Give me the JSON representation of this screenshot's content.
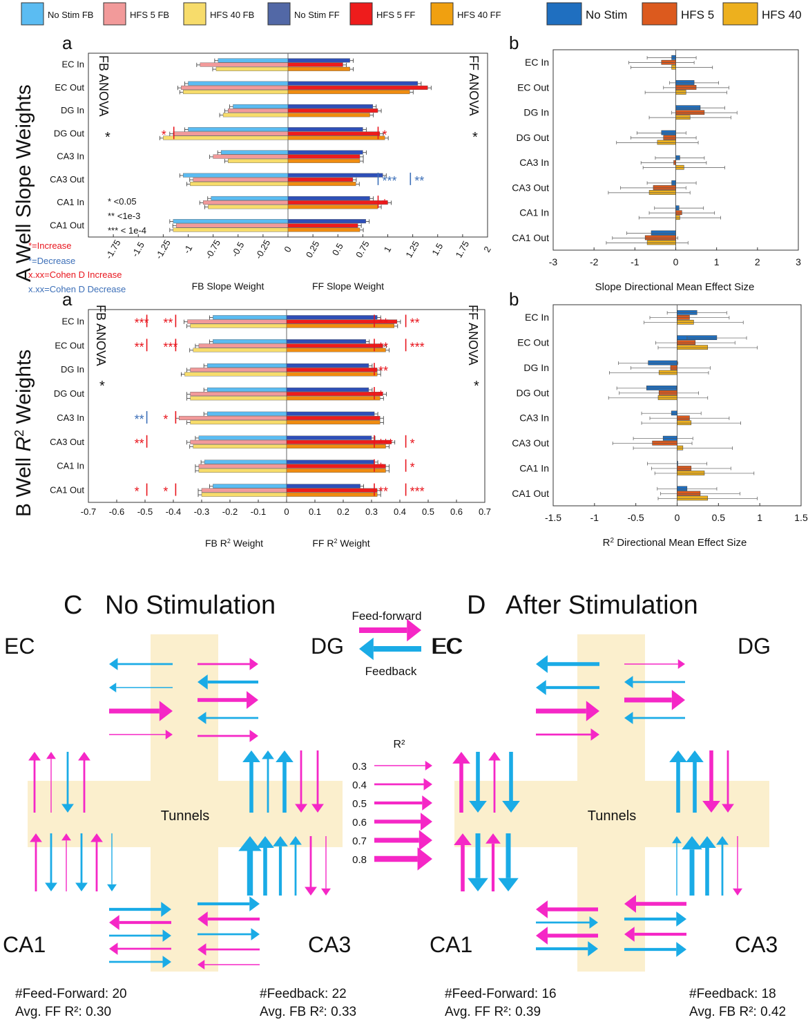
{
  "legend_top": {
    "items": [
      {
        "label": "No Stim FB",
        "color": "#5bbcf2"
      },
      {
        "label": "HFS 5 FB",
        "color": "#f29a9a"
      },
      {
        "label": "HFS 40 FB",
        "color": "#f7dc6b"
      },
      {
        "label": "No Stim FF",
        "color": "#5268a6"
      },
      {
        "label": "HFS 5 FF",
        "color": "#ee1c1c"
      },
      {
        "label": "HFS 40 FF",
        "color": "#f0a010"
      }
    ],
    "items_b": [
      {
        "label": "No Stim",
        "color": "#1f6fc0"
      },
      {
        "label": "HFS 5",
        "color": "#dc5a1e"
      },
      {
        "label": "HFS 40",
        "color": "#edb01e"
      }
    ]
  },
  "colors": {
    "fb": [
      "#5bbcf2",
      "#f29a9a",
      "#f7dc6b"
    ],
    "ff": [
      "#2e4fb8",
      "#ee1c1c",
      "#f08c10"
    ],
    "b": [
      "#1f6fc0",
      "#dc5a1e",
      "#edb01e"
    ],
    "feedforward": "#f527c6",
    "feedback": "#1aabe6",
    "tunnel": "#fbefcd",
    "sig_red": "#e8141c",
    "sig_blue": "#3c6fb8"
  },
  "panel_labels": {
    "A": "A",
    "B": "B",
    "a": "a",
    "b": "b",
    "C": "C",
    "D": "D",
    "A_title": "Well Slope Weights",
    "B_title_prefix": "Well ",
    "B_title_var": "R",
    "B_title_sup": "2",
    "B_title_suffix": " Weights"
  },
  "annotations": {
    "fb_anova": "FB ANOVA",
    "ff_anova": "FF ANOVA",
    "anova_star": "*",
    "sig_legend": [
      "* <0.05",
      "** <1e-3",
      "*** < 1e-4"
    ],
    "increase": "*=Increase",
    "decrease": "*=Decrease",
    "cohen_inc": "x.xx=Cohen  D Increase",
    "cohen_dec": "x.xx=Cohen  D Decrease"
  },
  "chart_data": [
    {
      "id": "A-a",
      "type": "bar",
      "orientation": "horizontal",
      "title": "Well Slope Weights",
      "categories": [
        "EC In",
        "EC Out",
        "DG In",
        "DG Out",
        "CA3 In",
        "CA3 Out",
        "CA1 In",
        "CA1 Out"
      ],
      "series": [
        {
          "name": "No Stim FB",
          "values": [
            -0.7,
            -1.0,
            -0.55,
            -1.0,
            -0.67,
            -1.05,
            -0.77,
            -1.15
          ]
        },
        {
          "name": "HFS 5 FB",
          "values": [
            -0.88,
            -1.07,
            -0.6,
            -1.15,
            -0.75,
            -0.95,
            -0.85,
            -1.12
          ]
        },
        {
          "name": "HFS 40 FB",
          "values": [
            -0.72,
            -1.05,
            -0.65,
            -1.25,
            -0.6,
            -0.98,
            -0.8,
            -1.15
          ]
        },
        {
          "name": "No Stim FF",
          "values": [
            0.62,
            1.3,
            0.85,
            0.75,
            0.75,
            0.95,
            0.82,
            0.78
          ]
        },
        {
          "name": "HFS 5 FF",
          "values": [
            0.55,
            1.4,
            0.9,
            0.92,
            0.72,
            0.65,
            1.0,
            0.7
          ]
        },
        {
          "name": "HFS 40 FF",
          "values": [
            0.62,
            1.22,
            0.82,
            0.97,
            0.72,
            0.68,
            0.9,
            0.72
          ]
        }
      ],
      "xlim": [
        -2,
        2
      ],
      "xticks": [
        "-1.75",
        "-1.5",
        "-1.25",
        "-1",
        "-0.75",
        "-0.5",
        "-0.25",
        "0",
        "0.25",
        "0.5",
        "0.75",
        "1",
        "1.25",
        "1.5",
        "1.75",
        "2"
      ],
      "xlabel_fb": "FB Slope Weight",
      "xlabel_ff": "FF Slope Weight"
    },
    {
      "id": "A-b",
      "type": "bar",
      "orientation": "horizontal",
      "categories": [
        "EC In",
        "EC Out",
        "DG In",
        "DG Out",
        "CA3 In",
        "CA3 Out",
        "CA1 In",
        "CA1 Out"
      ],
      "series": [
        {
          "name": "No Stim",
          "values": [
            -0.1,
            0.45,
            0.6,
            -0.35,
            0.1,
            -0.1,
            0.08,
            -0.6
          ]
        },
        {
          "name": "HFS 5",
          "values": [
            -0.35,
            0.5,
            0.7,
            -0.3,
            -0.05,
            -0.55,
            0.15,
            -0.75
          ]
        },
        {
          "name": "HFS 40",
          "values": [
            -0.1,
            0.25,
            0.35,
            -0.45,
            0.2,
            -0.65,
            0.1,
            -0.7
          ]
        }
      ],
      "xlim": [
        -3,
        3
      ],
      "xticks": [
        "-3",
        "-2",
        "-1",
        "0",
        "1",
        "2",
        "3"
      ],
      "xlabel": "Slope Directional Mean Effect Size"
    },
    {
      "id": "B-a",
      "type": "bar",
      "orientation": "horizontal",
      "title": "Well R2 Weights",
      "categories": [
        "EC In",
        "EC Out",
        "DG In",
        "DG Out",
        "CA3 In",
        "CA3 Out",
        "CA1 In",
        "CA1 Out"
      ],
      "series": [
        {
          "name": "No Stim FB",
          "values": [
            -0.26,
            -0.26,
            -0.28,
            -0.28,
            -0.28,
            -0.31,
            -0.29,
            -0.26
          ]
        },
        {
          "name": "HFS 5 FB",
          "values": [
            -0.35,
            -0.31,
            -0.34,
            -0.34,
            -0.38,
            -0.34,
            -0.31,
            -0.3
          ]
        },
        {
          "name": "HFS 40 FB",
          "values": [
            -0.34,
            -0.33,
            -0.36,
            -0.34,
            -0.34,
            -0.33,
            -0.31,
            -0.3
          ]
        },
        {
          "name": "No Stim FF",
          "values": [
            0.32,
            0.28,
            0.29,
            0.29,
            0.31,
            0.3,
            0.31,
            0.26
          ]
        },
        {
          "name": "HFS 5 FF",
          "values": [
            0.39,
            0.34,
            0.32,
            0.34,
            0.33,
            0.37,
            0.35,
            0.32
          ]
        },
        {
          "name": "HFS 40 FF",
          "values": [
            0.38,
            0.35,
            0.32,
            0.33,
            0.33,
            0.35,
            0.35,
            0.32
          ]
        }
      ],
      "xlim": [
        -0.7,
        0.7
      ],
      "xticks": [
        "-0.7",
        "-0.6",
        "-0.5",
        "-0.4",
        "-0.3",
        "-0.2",
        "-0.1",
        "0",
        "0.1",
        "0.2",
        "0.3",
        "0.4",
        "0.5",
        "0.6",
        "0.7"
      ],
      "xlabel_fb": "FB R2 Weight",
      "xlabel_ff": "FF R2 Weight"
    },
    {
      "id": "B-b",
      "type": "bar",
      "orientation": "horizontal",
      "categories": [
        "EC In",
        "EC Out",
        "DG In",
        "DG Out",
        "CA3 In",
        "CA3 Out",
        "CA1 In",
        "CA1 Out"
      ],
      "series": [
        {
          "name": "No Stim",
          "values": [
            0.24,
            0.48,
            -0.35,
            -0.37,
            -0.07,
            -0.17,
            0.0,
            0.12
          ]
        },
        {
          "name": "HFS 5",
          "values": [
            0.15,
            0.22,
            -0.08,
            -0.22,
            0.15,
            -0.3,
            0.17,
            0.28
          ]
        },
        {
          "name": "HFS 40",
          "values": [
            0.2,
            0.37,
            -0.22,
            -0.23,
            0.17,
            0.07,
            0.33,
            0.37
          ]
        }
      ],
      "xlim": [
        -1.5,
        1.5
      ],
      "xticks": [
        "-1.5",
        "-1",
        "-0.5",
        "0",
        "0.5",
        "1",
        "1.5"
      ],
      "xlabel": "R2 Directional Mean Effect Size"
    }
  ],
  "significance": {
    "A": [
      {
        "cat": "DG Out",
        "side": "fb",
        "text": "*",
        "color": "red"
      },
      {
        "cat": "DG Out",
        "side": "ff",
        "text": "*",
        "color": "red"
      },
      {
        "cat": "CA3 Out",
        "side": "ff",
        "text": "***",
        "color": "blue"
      },
      {
        "cat": "CA3 Out",
        "side": "ff2",
        "text": "**",
        "color": "blue"
      },
      {
        "cat": "CA1 In",
        "side": "ff",
        "text": "*",
        "color": "red"
      }
    ],
    "B": [
      {
        "cat": "EC In",
        "side": "fb2",
        "text": "***",
        "color": "red"
      },
      {
        "cat": "EC In",
        "side": "fb",
        "text": "**",
        "color": "red"
      },
      {
        "cat": "EC In",
        "side": "ff",
        "text": "**",
        "color": "red"
      },
      {
        "cat": "EC In",
        "side": "ff2",
        "text": "**",
        "color": "red"
      },
      {
        "cat": "EC Out",
        "side": "fb2",
        "text": "**",
        "color": "red"
      },
      {
        "cat": "EC Out",
        "side": "fb",
        "text": "***",
        "color": "red"
      },
      {
        "cat": "EC Out",
        "side": "ff",
        "text": "**",
        "color": "red"
      },
      {
        "cat": "EC Out",
        "side": "ff2",
        "text": "***",
        "color": "red"
      },
      {
        "cat": "DG In",
        "side": "ff",
        "text": "**",
        "color": "red"
      },
      {
        "cat": "DG Out",
        "side": "ff",
        "text": "*",
        "color": "red"
      },
      {
        "cat": "CA3 In",
        "side": "fb2",
        "text": "**",
        "color": "blue"
      },
      {
        "cat": "CA3 In",
        "side": "fb",
        "text": "*",
        "color": "red"
      },
      {
        "cat": "CA3 Out",
        "side": "fb2",
        "text": "**",
        "color": "red"
      },
      {
        "cat": "CA3 Out",
        "side": "ff",
        "text": "***",
        "color": "red"
      },
      {
        "cat": "CA3 Out",
        "side": "ff2",
        "text": "*",
        "color": "red"
      },
      {
        "cat": "CA1 In",
        "side": "ff",
        "text": "*",
        "color": "red"
      },
      {
        "cat": "CA1 In",
        "side": "ff2",
        "text": "*",
        "color": "red"
      },
      {
        "cat": "CA1 Out",
        "side": "fb2",
        "text": "*",
        "color": "red"
      },
      {
        "cat": "CA1 Out",
        "side": "fb",
        "text": "*",
        "color": "red"
      },
      {
        "cat": "CA1 Out",
        "side": "ff",
        "text": "**",
        "color": "red"
      },
      {
        "cat": "CA1 Out",
        "side": "ff2",
        "text": "***",
        "color": "red"
      }
    ]
  },
  "diagram": {
    "C": {
      "title": "No Stimulation",
      "labels": {
        "ec": "EC",
        "dg": "DG",
        "ca1": "CA1",
        "ca3": "CA3",
        "tunnels": "Tunnels"
      },
      "stats": {
        "ff_count_label": "#Feed-Forward:",
        "ff_count": "20",
        "ff_avg_label": "Avg. FF R²:",
        "ff_avg": "0.30",
        "fb_count_label": "#Feedback:",
        "fb_count": "22",
        "fb_avg_label": "Avg. FB R²:",
        "fb_avg": "0.33"
      },
      "arrows": {
        "top": [
          [
            "fb",
            0.4
          ],
          [
            "fb",
            0.3
          ],
          [
            "ff",
            0.7
          ],
          [
            "ff",
            0.3
          ]
        ],
        "top_right": [
          [
            "ff",
            0.4
          ],
          [
            "fb",
            0.5
          ],
          [
            "ff",
            0.6
          ],
          [
            "fb",
            0.4
          ],
          [
            "ff",
            0.4
          ]
        ],
        "left_up": [
          [
            "ff",
            0.4
          ],
          [
            "ff",
            0.3
          ],
          [
            "fb",
            0.4
          ],
          [
            "ff",
            0.4
          ]
        ],
        "left_up_dirs": [
          "up",
          "up",
          "down",
          "up"
        ],
        "left_low": [
          [
            "ff",
            0.4
          ],
          [
            "fb",
            0.4
          ],
          [
            "ff",
            0.3
          ],
          [
            "fb",
            0.4
          ],
          [
            "ff",
            0.4
          ],
          [
            "fb",
            0.3
          ]
        ],
        "left_low_dirs": [
          "up",
          "down",
          "up",
          "down",
          "up",
          "down"
        ],
        "right_up": [
          [
            "fb",
            0.6
          ],
          [
            "fb",
            0.4
          ],
          [
            "fb",
            0.6
          ],
          [
            "ff",
            0.4
          ],
          [
            "ff",
            0.4
          ]
        ],
        "right_up_dirs": [
          "up",
          "up",
          "up",
          "down",
          "down"
        ],
        "right_low": [
          [
            "fb",
            0.8
          ],
          [
            "fb",
            0.6
          ],
          [
            "fb",
            0.5
          ],
          [
            "fb",
            0.4
          ],
          [
            "ff",
            0.4
          ],
          [
            "ff",
            0.3
          ]
        ],
        "right_low_dirs": [
          "up",
          "up",
          "up",
          "up",
          "down",
          "down"
        ],
        "bot_left": [
          [
            "fb",
            0.5
          ],
          [
            "ff",
            0.5
          ],
          [
            "fb",
            0.4
          ],
          [
            "ff",
            0.4
          ],
          [
            "fb",
            0.4
          ]
        ],
        "bot_left_dirs": [
          "right",
          "left",
          "right",
          "left",
          "right"
        ],
        "bot_right": [
          [
            "fb",
            0.5
          ],
          [
            "ff",
            0.5
          ],
          [
            "fb",
            0.4
          ],
          [
            "ff",
            0.4
          ],
          [
            "ff",
            0.3
          ]
        ],
        "bot_right_dirs": [
          "right",
          "left",
          "right",
          "left",
          "left"
        ]
      }
    },
    "D": {
      "title": "After Stimulation",
      "labels": {
        "ec": "EC",
        "dg": "DG",
        "ca1": "CA1",
        "ca3": "CA3",
        "tunnels": "Tunnels"
      },
      "stats": {
        "ff_count_label": "#Feed-Forward:",
        "ff_count": "16",
        "ff_avg_label": "Avg. FF R²:",
        "ff_avg": "0.39",
        "fb_count_label": "#Feedback:",
        "fb_count": "18",
        "fb_avg_label": "Avg. FB R²:",
        "fb_avg": "0.42"
      },
      "arrows": {
        "top": [
          [
            "fb",
            0.6
          ],
          [
            "fb",
            0.5
          ],
          [
            "ff",
            0.7
          ],
          [
            "ff",
            0.4
          ]
        ],
        "top_right": [
          [
            "ff",
            0.3
          ],
          [
            "fb",
            0.4
          ],
          [
            "ff",
            0.7
          ],
          [
            "fb",
            0.4
          ]
        ],
        "left_up": [
          [
            "ff",
            0.6
          ],
          [
            "fb",
            0.6
          ],
          [
            "ff",
            0.4
          ],
          [
            "fb",
            0.6
          ]
        ],
        "left_up_dirs": [
          "up",
          "down",
          "up",
          "down"
        ],
        "left_low": [
          [
            "ff",
            0.6
          ],
          [
            "fb",
            0.7
          ],
          [
            "ff",
            0.5
          ],
          [
            "fb",
            0.7
          ]
        ],
        "left_low_dirs": [
          "up",
          "down",
          "up",
          "down"
        ],
        "right_up": [
          [
            "fb",
            0.6
          ],
          [
            "fb",
            0.6
          ],
          [
            "ff",
            0.6
          ],
          [
            "ff",
            0.4
          ]
        ],
        "right_up_dirs": [
          "up",
          "up",
          "down",
          "down"
        ],
        "right_low": [
          [
            "fb",
            0.3
          ],
          [
            "fb",
            0.7
          ],
          [
            "fb",
            0.6
          ],
          [
            "fb",
            0.4
          ],
          [
            "ff",
            0.3
          ]
        ],
        "right_low_dirs": [
          "up",
          "up",
          "up",
          "up",
          "down"
        ],
        "bot_left": [
          [
            "ff",
            0.6
          ],
          [
            "fb",
            0.4
          ],
          [
            "ff",
            0.6
          ],
          [
            "fb",
            0.5
          ]
        ],
        "bot_left_dirs": [
          "left",
          "right",
          "left",
          "right"
        ],
        "bot_right": [
          [
            "ff",
            0.6
          ],
          [
            "fb",
            0.5
          ],
          [
            "ff",
            0.5
          ],
          [
            "fb",
            0.5
          ]
        ],
        "bot_right_dirs": [
          "left",
          "right",
          "left",
          "right"
        ]
      }
    },
    "key": {
      "ff_label": "Feed-forward",
      "fb_label": "Feedback",
      "ec_label": "EC",
      "r2_label": "R²",
      "scale": [
        "0.3",
        "0.4",
        "0.5",
        "0.6",
        "0.7",
        "0.8"
      ]
    }
  }
}
